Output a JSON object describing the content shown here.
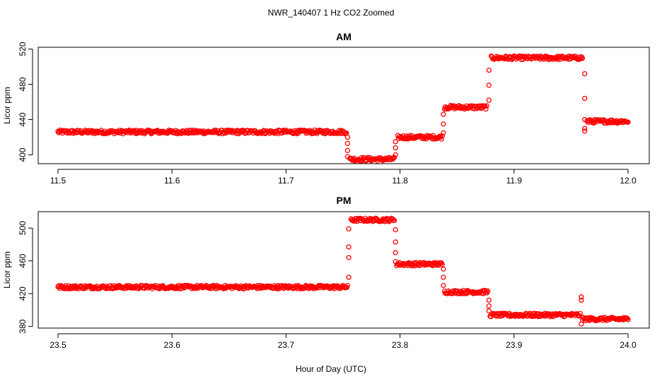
{
  "figure": {
    "title": "NWR_140407  1 Hz CO2 Zoomed",
    "xlabel": "Hour of Day (UTC)"
  },
  "colors": {
    "points": "#ff0000",
    "axes": "#000000",
    "background": "#ffffff"
  },
  "chart_data": [
    {
      "type": "scatter",
      "title": "AM",
      "xlabel": "",
      "ylabel": "Licor ppm",
      "xlim": [
        11.5,
        12.0
      ],
      "ylim": [
        390,
        522
      ],
      "xticks": [
        "11.5",
        "11.6",
        "11.7",
        "11.8",
        "11.9",
        "12.0"
      ],
      "yticks": [
        "400",
        "440",
        "480",
        "520"
      ],
      "grid": false,
      "series": [
        {
          "marker": "open-circle",
          "segments": [
            {
              "x_start": 11.5,
              "x_end": 11.753,
              "y": 426
            },
            {
              "x_start": 11.756,
              "x_end": 11.795,
              "y": 395
            },
            {
              "x_start": 11.798,
              "x_end": 11.837,
              "y": 420
            },
            {
              "x_start": 11.839,
              "x_end": 11.876,
              "y": 454
            },
            {
              "x_start": 11.88,
              "x_end": 11.96,
              "y": 510
            },
            {
              "x_start": 11.964,
              "x_end": 12.0,
              "y": 438
            }
          ],
          "transitions": [
            {
              "x": 11.754,
              "y": [
                420,
                413,
                405,
                398
              ]
            },
            {
              "x": 11.796,
              "y": [
                400,
                408,
                415
              ]
            },
            {
              "x": 11.838,
              "y": [
                425,
                435,
                446
              ]
            },
            {
              "x": 11.878,
              "y": [
                462,
                479,
                496
              ]
            },
            {
              "x": 11.962,
              "y": [
                492,
                464,
                440,
                430,
                427
              ]
            }
          ]
        }
      ]
    },
    {
      "type": "scatter",
      "title": "PM",
      "xlabel": "Hour of Day (UTC)",
      "ylabel": "Licor ppm",
      "xlim": [
        23.5,
        24.0
      ],
      "ylim": [
        378,
        520
      ],
      "xticks": [
        "23.5",
        "23.6",
        "23.7",
        "23.8",
        "23.9",
        "24.0"
      ],
      "yticks": [
        "380",
        "420",
        "460",
        "500"
      ],
      "grid": false,
      "series": [
        {
          "marker": "open-circle",
          "segments": [
            {
              "x_start": 23.5,
              "x_end": 23.754,
              "y": 428
            },
            {
              "x_start": 23.757,
              "x_end": 23.795,
              "y": 510
            },
            {
              "x_start": 23.797,
              "x_end": 23.837,
              "y": 456
            },
            {
              "x_start": 23.839,
              "x_end": 23.877,
              "y": 422
            },
            {
              "x_start": 23.879,
              "x_end": 23.958,
              "y": 394
            },
            {
              "x_start": 23.96,
              "x_end": 24.0,
              "y": 389
            }
          ],
          "transitions": [
            {
              "x": 23.755,
              "y": [
                440,
                464,
                477,
                499
              ]
            },
            {
              "x": 23.796,
              "y": [
                498,
                483,
                470,
                459
              ]
            },
            {
              "x": 23.838,
              "y": [
                450,
                440,
                430
              ]
            },
            {
              "x": 23.878,
              "y": [
                412,
                405,
                399
              ]
            },
            {
              "x": 23.959,
              "y": [
                416,
                412,
                383
              ]
            }
          ]
        }
      ]
    }
  ]
}
